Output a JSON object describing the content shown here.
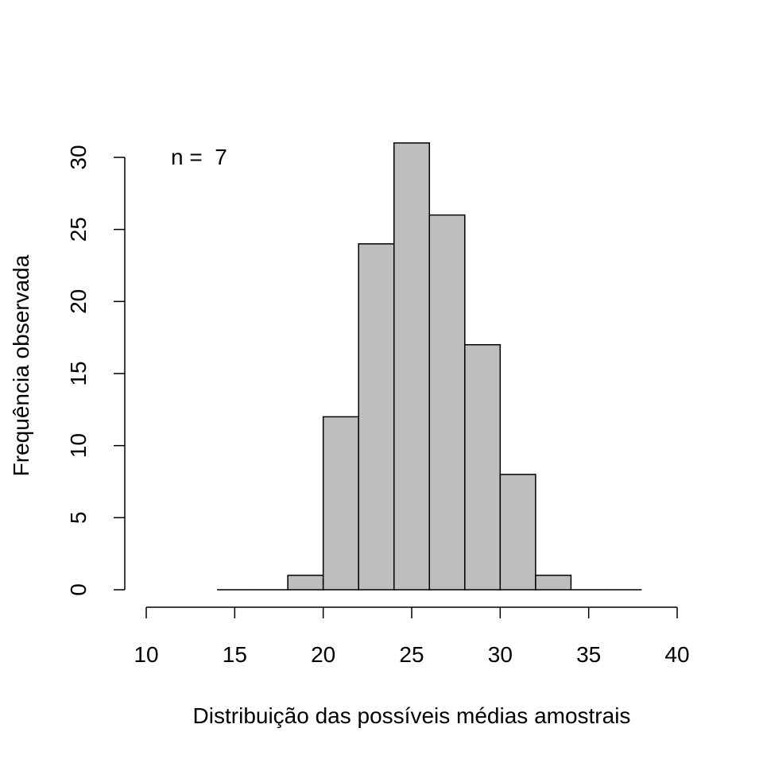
{
  "chart_data": {
    "type": "bar",
    "title": "",
    "xlabel": "Distribuição das possíveis médias amostrais",
    "ylabel": "Frequência observada",
    "annotation": "n =  7",
    "bins": [
      {
        "x0": 14,
        "x1": 16,
        "count": 0
      },
      {
        "x0": 16,
        "x1": 18,
        "count": 0
      },
      {
        "x0": 18,
        "x1": 20,
        "count": 1
      },
      {
        "x0": 20,
        "x1": 22,
        "count": 12
      },
      {
        "x0": 22,
        "x1": 24,
        "count": 24
      },
      {
        "x0": 24,
        "x1": 26,
        "count": 31
      },
      {
        "x0": 26,
        "x1": 28,
        "count": 26
      },
      {
        "x0": 28,
        "x1": 30,
        "count": 17
      },
      {
        "x0": 30,
        "x1": 32,
        "count": 8
      },
      {
        "x0": 32,
        "x1": 34,
        "count": 1
      },
      {
        "x0": 34,
        "x1": 36,
        "count": 0
      },
      {
        "x0": 36,
        "x1": 38,
        "count": 0
      }
    ],
    "xlim": [
      10,
      40
    ],
    "ylim": [
      0,
      30
    ],
    "xticks": [
      10,
      15,
      20,
      25,
      30,
      35,
      40
    ],
    "yticks": [
      0,
      5,
      10,
      15,
      20,
      25,
      30
    ],
    "bar_color": "#bebebe",
    "grid": false,
    "legend": "none"
  }
}
